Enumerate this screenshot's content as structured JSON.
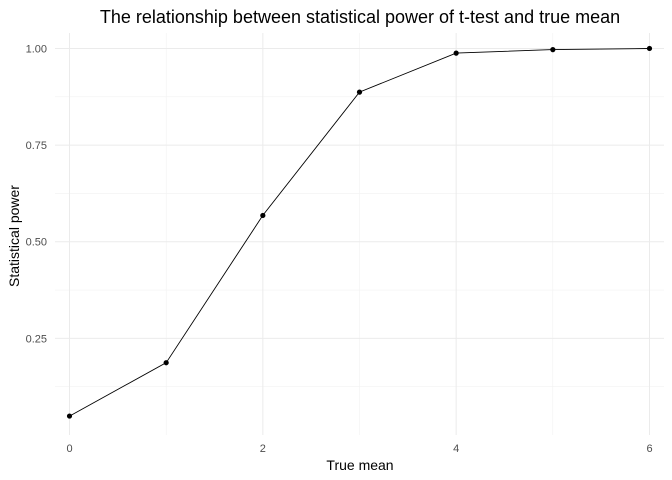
{
  "chart_data": {
    "type": "line",
    "title": "The relationship between statistical power of t-test and true mean",
    "xlabel": "True mean",
    "ylabel": "Statistical power",
    "x": [
      0,
      1,
      2,
      3,
      4,
      5,
      6
    ],
    "y": [
      0.049,
      0.187,
      0.568,
      0.887,
      0.988,
      0.997,
      1.0
    ],
    "xlim": [
      -0.15,
      6.15
    ],
    "ylim": [
      0.0,
      1.04
    ],
    "x_ticks": [
      0,
      2,
      4,
      6
    ],
    "x_tick_labels": [
      "0",
      "2",
      "4",
      "6"
    ],
    "x_minor_ticks": [
      1,
      3,
      5
    ],
    "y_ticks": [
      0.25,
      0.5,
      0.75,
      1.0
    ],
    "y_tick_labels": [
      "0.25",
      "0.50",
      "0.75",
      "1.00"
    ],
    "y_minor_ticks": [
      0.125,
      0.375,
      0.625,
      0.875
    ],
    "grid": true,
    "legend": "none",
    "line_color": "#000000",
    "point_color": "#000000"
  }
}
